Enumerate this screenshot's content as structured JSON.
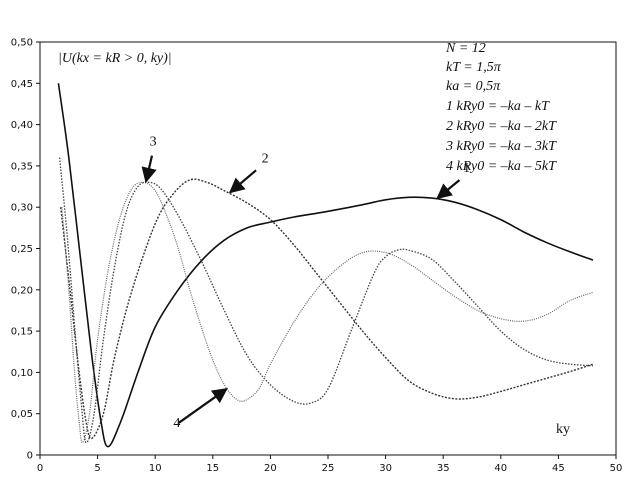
{
  "chart_data": {
    "type": "line",
    "title": "",
    "ylabel_text": "|U(kx = kR > 0, ky)|",
    "xlabel": "ky",
    "xlim": [
      0,
      50
    ],
    "ylim": [
      0,
      0.5
    ],
    "x_ticks": [
      "0",
      "5",
      "10",
      "15",
      "20",
      "25",
      "30",
      "35",
      "40",
      "45",
      "50"
    ],
    "y_ticks": [
      "0",
      "0,05",
      "0,10",
      "0,15",
      "0,20",
      "0,25",
      "0,30",
      "0,35",
      "0,40",
      "0,45",
      "0,50"
    ],
    "legend_lines": [
      "N = 12",
      "kT = 1,5π",
      "ka = 0,5π",
      "1 kRy0 = –ka – kT",
      "2 kRy0 = –ka – 2kT",
      "3 kRy0 = –ka – 3kT",
      "4 kRy0 = –ka – 5kT"
    ],
    "grid": false,
    "series": [
      {
        "name": "1",
        "color": "#111111",
        "points": [
          [
            1.6,
            0.45
          ],
          [
            2.5,
            0.36
          ],
          [
            3.5,
            0.24
          ],
          [
            4.5,
            0.12
          ],
          [
            5.3,
            0.04
          ],
          [
            5.9,
            0.01
          ],
          [
            7,
            0.04
          ],
          [
            8.5,
            0.1
          ],
          [
            10,
            0.155
          ],
          [
            12,
            0.2
          ],
          [
            14,
            0.235
          ],
          [
            16,
            0.26
          ],
          [
            18,
            0.275
          ],
          [
            20,
            0.282
          ],
          [
            22,
            0.288
          ],
          [
            25,
            0.295
          ],
          [
            28,
            0.303
          ],
          [
            30,
            0.309
          ],
          [
            32,
            0.312
          ],
          [
            34,
            0.311
          ],
          [
            36,
            0.306
          ],
          [
            38,
            0.297
          ],
          [
            40,
            0.285
          ],
          [
            42,
            0.27
          ],
          [
            44,
            0.257
          ],
          [
            46,
            0.246
          ],
          [
            48,
            0.236
          ]
        ]
      },
      {
        "name": "2",
        "color": "#333333",
        "points": [
          [
            1.8,
            0.3
          ],
          [
            2.6,
            0.2
          ],
          [
            3.4,
            0.1
          ],
          [
            4.0,
            0.04
          ],
          [
            4.5,
            0.02
          ],
          [
            5.5,
            0.05
          ],
          [
            6.5,
            0.12
          ],
          [
            8,
            0.2
          ],
          [
            10,
            0.28
          ],
          [
            11.5,
            0.315
          ],
          [
            13,
            0.333
          ],
          [
            14.5,
            0.33
          ],
          [
            16,
            0.32
          ],
          [
            18,
            0.305
          ],
          [
            20,
            0.285
          ],
          [
            22,
            0.255
          ],
          [
            24,
            0.22
          ],
          [
            26,
            0.185
          ],
          [
            28,
            0.15
          ],
          [
            30,
            0.118
          ],
          [
            32,
            0.09
          ],
          [
            34,
            0.075
          ],
          [
            36,
            0.068
          ],
          [
            38,
            0.07
          ],
          [
            40,
            0.077
          ],
          [
            42,
            0.085
          ],
          [
            44,
            0.093
          ],
          [
            46,
            0.101
          ],
          [
            48,
            0.11
          ]
        ]
      },
      {
        "name": "3",
        "color": "#444444",
        "points": [
          [
            1.7,
            0.36
          ],
          [
            2.4,
            0.26
          ],
          [
            3.1,
            0.14
          ],
          [
            3.6,
            0.06
          ],
          [
            4.0,
            0.015
          ],
          [
            4.7,
            0.05
          ],
          [
            5.5,
            0.14
          ],
          [
            6.5,
            0.23
          ],
          [
            7.5,
            0.295
          ],
          [
            8.5,
            0.325
          ],
          [
            9.5,
            0.33
          ],
          [
            10.5,
            0.322
          ],
          [
            12,
            0.29
          ],
          [
            14,
            0.235
          ],
          [
            16,
            0.175
          ],
          [
            18,
            0.12
          ],
          [
            20,
            0.085
          ],
          [
            22,
            0.065
          ],
          [
            23.5,
            0.063
          ],
          [
            25,
            0.08
          ],
          [
            27,
            0.15
          ],
          [
            29,
            0.22
          ],
          [
            30,
            0.24
          ],
          [
            31,
            0.248
          ],
          [
            32,
            0.248
          ],
          [
            34,
            0.237
          ],
          [
            36,
            0.21
          ],
          [
            38,
            0.18
          ],
          [
            40,
            0.15
          ],
          [
            42,
            0.128
          ],
          [
            44,
            0.115
          ],
          [
            46,
            0.11
          ],
          [
            48,
            0.108
          ]
        ]
      },
      {
        "name": "4",
        "color": "#666666",
        "points": [
          [
            1.9,
            0.3
          ],
          [
            2.5,
            0.2
          ],
          [
            3.0,
            0.1
          ],
          [
            3.4,
            0.04
          ],
          [
            3.7,
            0.015
          ],
          [
            4.3,
            0.05
          ],
          [
            5,
            0.14
          ],
          [
            6,
            0.23
          ],
          [
            7,
            0.29
          ],
          [
            8,
            0.323
          ],
          [
            9,
            0.33
          ],
          [
            10,
            0.32
          ],
          [
            11,
            0.29
          ],
          [
            12,
            0.25
          ],
          [
            13,
            0.2
          ],
          [
            14,
            0.155
          ],
          [
            15,
            0.115
          ],
          [
            16,
            0.085
          ],
          [
            17,
            0.068
          ],
          [
            17.8,
            0.066
          ],
          [
            19,
            0.08
          ],
          [
            20,
            0.11
          ],
          [
            22,
            0.16
          ],
          [
            24,
            0.2
          ],
          [
            26,
            0.228
          ],
          [
            28,
            0.245
          ],
          [
            30,
            0.245
          ],
          [
            32,
            0.232
          ],
          [
            34,
            0.212
          ],
          [
            36,
            0.192
          ],
          [
            38,
            0.175
          ],
          [
            40,
            0.165
          ],
          [
            42,
            0.162
          ],
          [
            44,
            0.17
          ],
          [
            46,
            0.187
          ],
          [
            48,
            0.197
          ]
        ]
      }
    ],
    "annotations": [
      {
        "label": "1",
        "series": "1",
        "at_x": 34.5,
        "at_y": 0.311
      },
      {
        "label": "2",
        "series": "2",
        "at_x": 16.5,
        "at_y": 0.318
      },
      {
        "label": "3",
        "series": "3",
        "at_x": 9.2,
        "at_y": 0.331
      },
      {
        "label": "4",
        "series": "4",
        "at_x": 16.2,
        "at_y": 0.08
      }
    ]
  }
}
